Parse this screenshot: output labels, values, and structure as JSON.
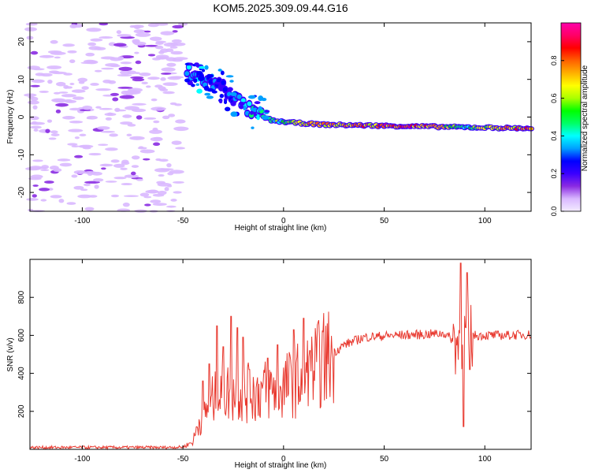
{
  "figure": {
    "title": "KOM5.2025.309.09.44.G16"
  },
  "chart_data": [
    {
      "type": "heatmap",
      "name": "spectrogram",
      "xlabel": "Height of straight line (km)",
      "ylabel": "Frequency (Hz)",
      "xlim": [
        -126,
        123
      ],
      "ylim": [
        -25,
        25
      ],
      "xticks": [
        -100,
        -50,
        0,
        50,
        100
      ],
      "yticks": [
        -20,
        -10,
        0,
        10,
        20
      ],
      "colorbar": {
        "label": "Normalized spectral amplitude",
        "range": [
          0,
          1
        ],
        "ticks": [
          "0.0",
          "0.2",
          "0.4",
          "0.6",
          "0.8"
        ],
        "colors": [
          "#f3ecff",
          "#d9b8ff",
          "#8a2be2",
          "#3a00ff",
          "#0000ff",
          "#00a0ff",
          "#00ffff",
          "#00ff66",
          "#00ff00",
          "#aaff00",
          "#ffff00",
          "#ffb000",
          "#ff6000",
          "#ff0000",
          "#ff0066",
          "#ff00aa"
        ]
      },
      "ridge": {
        "description_points_km_hz": [
          [
            -48,
            12
          ],
          [
            -40,
            10
          ],
          [
            -30,
            8
          ],
          [
            -22,
            4
          ],
          [
            -15,
            1
          ],
          [
            -5,
            -1
          ],
          [
            5,
            -1.5
          ],
          [
            20,
            -2
          ],
          [
            40,
            -2.2
          ],
          [
            60,
            -2.4
          ],
          [
            80,
            -2.6
          ],
          [
            100,
            -2.8
          ],
          [
            123,
            -3
          ]
        ],
        "amplitude_profile": [
          [
            -48,
            0.35
          ],
          [
            -30,
            0.25
          ],
          [
            -15,
            0.4
          ],
          [
            0,
            0.55
          ],
          [
            15,
            0.7
          ],
          [
            40,
            0.75
          ],
          [
            60,
            0.85
          ],
          [
            80,
            0.7
          ],
          [
            90,
            0.4
          ],
          [
            100,
            0.65
          ],
          [
            123,
            0.8
          ]
        ]
      },
      "noise_region_km": [
        -126,
        -50
      ]
    },
    {
      "type": "line",
      "name": "snr",
      "xlabel": "Height of straight line (km)",
      "ylabel": "SNR (v/v)",
      "xlim": [
        -126,
        123
      ],
      "ylim": [
        0,
        1000
      ],
      "xticks": [
        -100,
        -50,
        0,
        50,
        100
      ],
      "yticks": [
        200,
        400,
        600,
        800
      ],
      "color": "#e8392f",
      "envelope_km_snr": [
        [
          -126,
          10
        ],
        [
          -60,
          10
        ],
        [
          -50,
          12
        ],
        [
          -45,
          40
        ],
        [
          -42,
          150
        ],
        [
          -35,
          260
        ],
        [
          -28,
          300
        ],
        [
          -20,
          290
        ],
        [
          -10,
          310
        ],
        [
          0,
          330
        ],
        [
          10,
          380
        ],
        [
          20,
          470
        ],
        [
          30,
          550
        ],
        [
          40,
          590
        ],
        [
          55,
          600
        ],
        [
          70,
          605
        ],
        [
          80,
          610
        ],
        [
          86,
          560
        ],
        [
          88,
          590
        ],
        [
          95,
          600
        ],
        [
          110,
          600
        ],
        [
          123,
          605
        ]
      ],
      "spikes_km_snr": [
        [
          -40,
          360
        ],
        [
          -37,
          450
        ],
        [
          -33,
          650
        ],
        [
          -30,
          540
        ],
        [
          -26,
          700
        ],
        [
          -23,
          640
        ],
        [
          -20,
          590
        ],
        [
          -17,
          420
        ],
        [
          -8,
          480
        ],
        [
          -3,
          550
        ],
        [
          5,
          630
        ],
        [
          10,
          690
        ],
        [
          13,
          520
        ],
        [
          88,
          980
        ],
        [
          89.5,
          120
        ],
        [
          91,
          930
        ],
        [
          92.5,
          420
        ]
      ]
    }
  ]
}
